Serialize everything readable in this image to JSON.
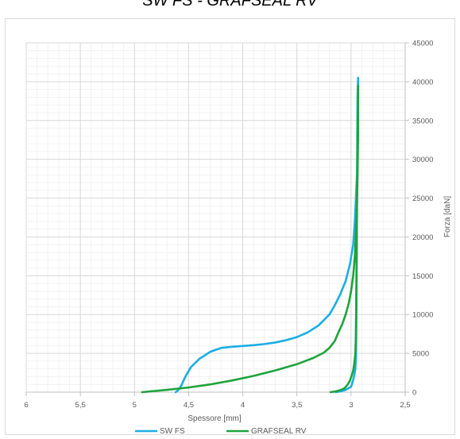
{
  "chart_data": {
    "type": "line",
    "title": "SW FS - GRAFSEAL RV",
    "xlabel": "Spessore [mm]",
    "ylabel": "Forza [daN]",
    "xlim": [
      6,
      2.5
    ],
    "ylim": [
      0,
      45000
    ],
    "x_reversed": true,
    "y_axis_side": "right",
    "x_ticks": [
      "6",
      "5,5",
      "5",
      "4,5",
      "4",
      "3,5",
      "3",
      "2,5"
    ],
    "x_tick_values": [
      6,
      5.5,
      5,
      4.5,
      4,
      3.5,
      3,
      2.5
    ],
    "y_ticks": [
      "0",
      "5000",
      "10000",
      "15000",
      "20000",
      "25000",
      "30000",
      "35000",
      "40000",
      "45000"
    ],
    "y_tick_values": [
      0,
      5000,
      10000,
      15000,
      20000,
      25000,
      30000,
      35000,
      40000,
      45000
    ],
    "grid": true,
    "legend_position": "bottom",
    "series": [
      {
        "name": "SW FS",
        "color": "#1aaee5",
        "x": [
          4.62,
          4.6,
          4.57,
          4.53,
          4.48,
          4.4,
          4.3,
          4.2,
          4.1,
          4.0,
          3.9,
          3.8,
          3.7,
          3.6,
          3.5,
          3.4,
          3.3,
          3.2,
          3.15,
          3.1,
          3.05,
          3.01,
          2.98,
          2.965,
          2.955,
          2.945,
          2.94,
          2.935,
          2.935,
          2.94,
          2.942,
          2.944,
          2.946,
          2.948,
          2.95,
          2.952,
          2.955,
          2.96,
          2.97,
          2.98,
          2.99,
          3.0,
          3.05,
          3.1,
          3.14
        ],
        "y": [
          0,
          200,
          800,
          2000,
          3200,
          4300,
          5200,
          5700,
          5850,
          5950,
          6050,
          6200,
          6400,
          6700,
          7100,
          7700,
          8600,
          10000,
          11200,
          12600,
          14300,
          16500,
          19000,
          22000,
          25000,
          28000,
          32000,
          36000,
          40500,
          38000,
          34000,
          28000,
          22000,
          16000,
          11000,
          7000,
          4500,
          3000,
          2200,
          1600,
          1100,
          700,
          300,
          100,
          0
        ]
      },
      {
        "name": "GRAFSEAL RV",
        "color": "#1ea33c",
        "x": [
          4.93,
          4.7,
          4.5,
          4.3,
          4.1,
          3.9,
          3.7,
          3.5,
          3.35,
          3.25,
          3.2,
          3.15,
          3.12,
          3.08,
          3.05,
          3.02,
          3.0,
          2.98,
          2.965,
          2.955,
          2.945,
          2.94,
          2.935,
          2.935,
          2.938,
          2.942,
          2.946,
          2.95,
          2.953,
          2.956,
          2.96,
          2.97,
          2.98,
          2.995,
          3.01,
          3.03,
          3.06,
          3.1,
          3.15,
          3.19
        ],
        "y": [
          0,
          300,
          600,
          1000,
          1500,
          2100,
          2800,
          3600,
          4400,
          5100,
          5700,
          6600,
          7600,
          8800,
          10000,
          11500,
          13000,
          15000,
          17500,
          20500,
          24000,
          28000,
          33000,
          39500,
          36000,
          30000,
          22000,
          15000,
          10000,
          7000,
          5000,
          3700,
          2800,
          2100,
          1500,
          1000,
          500,
          250,
          80,
          0
        ]
      }
    ]
  }
}
